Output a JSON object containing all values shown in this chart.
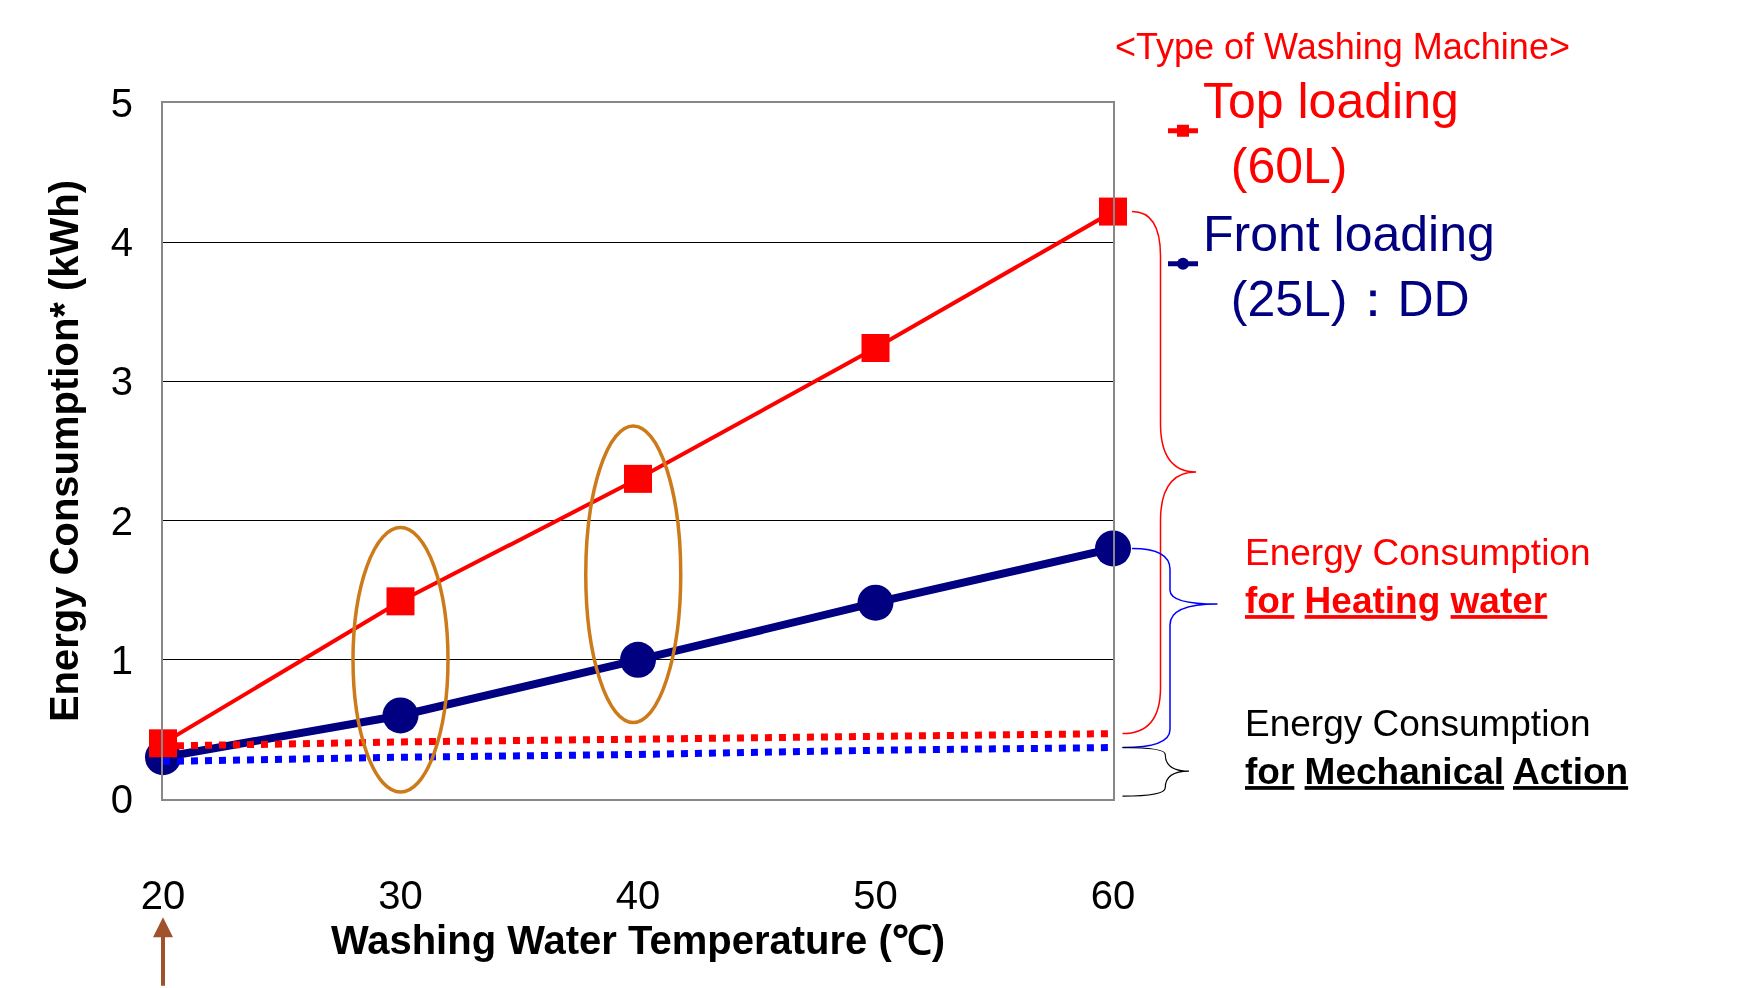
{
  "chart_data": {
    "type": "line",
    "xlabel": "Washing Water Temperature (℃)",
    "ylabel": "Energy Consumption* (kWh)",
    "legend_title": "<Type of Washing Machine>",
    "x": [
      20,
      30,
      40,
      50,
      60
    ],
    "xlim": [
      20,
      60
    ],
    "xticks": [
      20,
      30,
      40,
      50,
      60
    ],
    "ylim": [
      0,
      5
    ],
    "yticks": [
      0,
      1,
      2,
      3,
      4,
      5
    ],
    "grid": "y",
    "legend": "top right",
    "series": [
      {
        "name": "Top loading (60L)",
        "color": "#ff0000",
        "marker": "square",
        "line_style": "solid",
        "values": [
          0.4,
          1.42,
          2.3,
          3.24,
          4.22
        ]
      },
      {
        "name": "Front loading (25L)：DD",
        "color": "#000080",
        "marker": "circle",
        "line_style": "solid",
        "values": [
          0.3,
          0.6,
          1.0,
          1.41,
          1.8
        ]
      },
      {
        "color": "#ff0000",
        "marker": "none",
        "line_style": "dotted",
        "values": [
          0.38,
          0.41,
          0.43,
          0.45,
          0.47
        ]
      },
      {
        "color": "#0000ff",
        "marker": "none",
        "line_style": "dotted",
        "values": [
          0.27,
          0.3,
          0.32,
          0.35,
          0.37
        ]
      }
    ],
    "annotations": [
      "Energy Consumption\nfor Heating water",
      "Energy Consumption\nfor Mechanical Action"
    ]
  }
}
